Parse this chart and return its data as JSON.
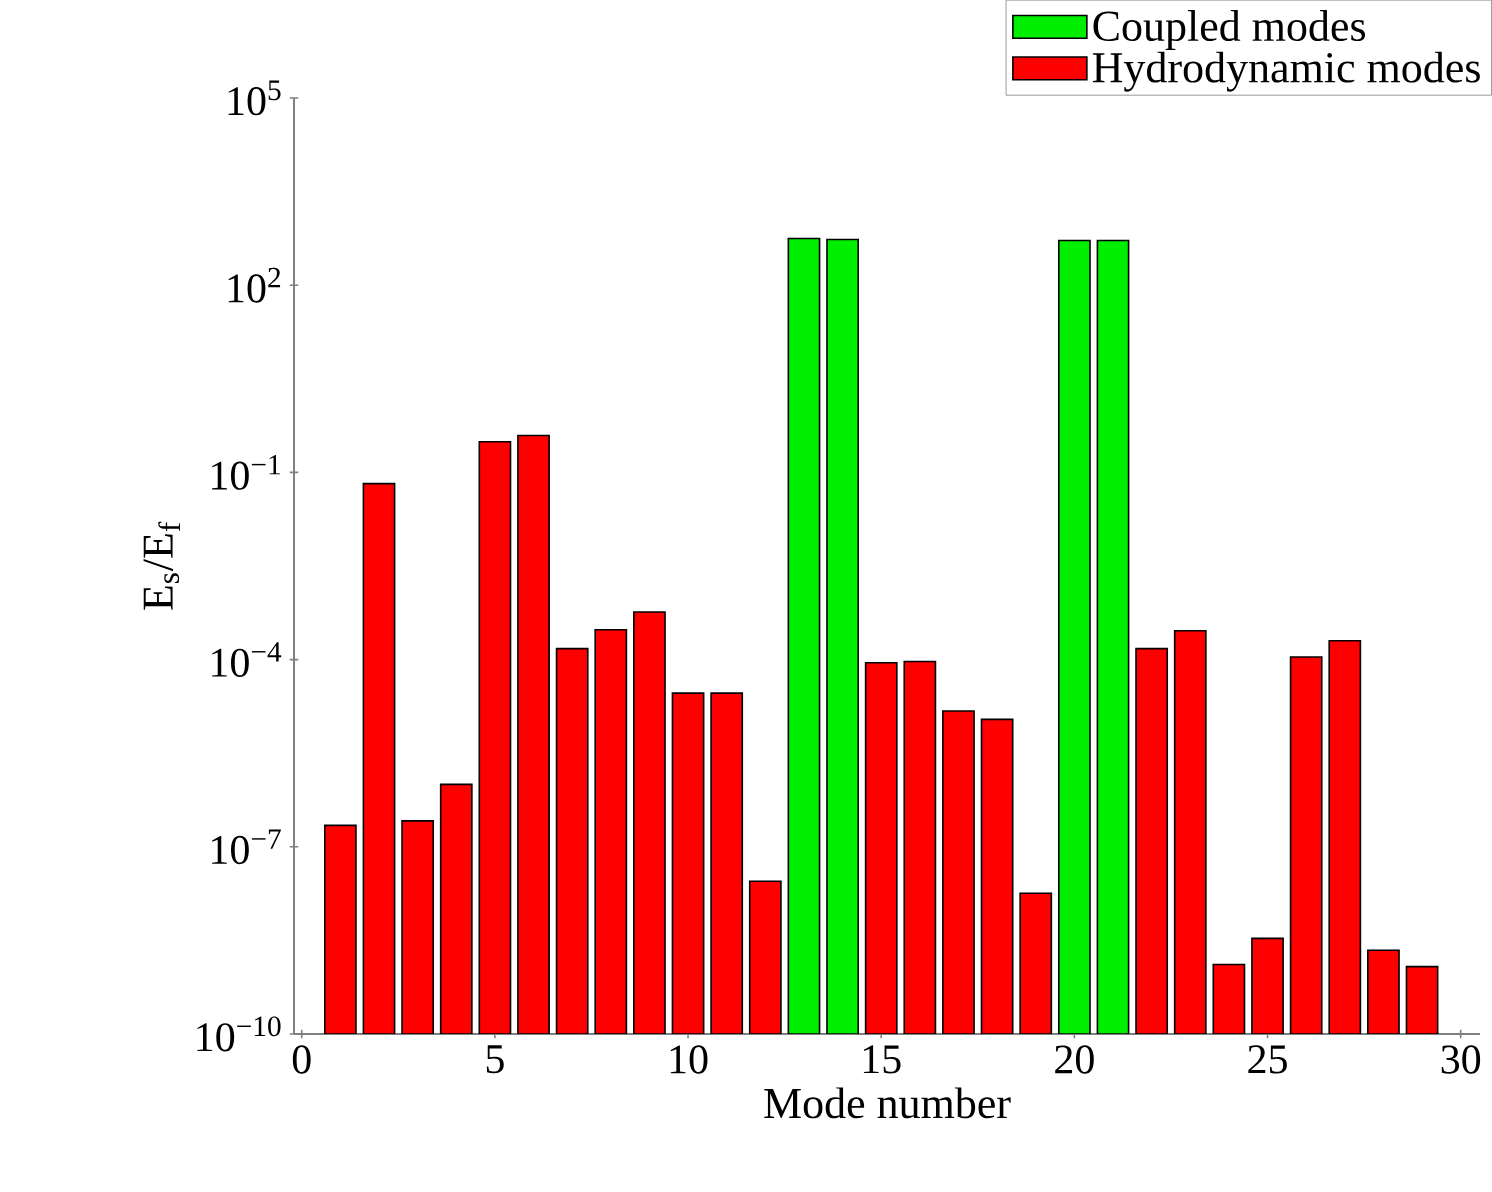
{
  "chart_data": {
    "type": "bar",
    "xlabel": "Mode number",
    "ylabel": "E$_{s}$/E$_{f}$",
    "log": "y",
    "legend": "top right",
    "x": [
      1,
      2,
      3,
      4,
      5,
      6,
      7,
      8,
      9,
      10,
      11,
      12,
      13,
      14,
      15,
      16,
      17,
      18,
      19,
      20,
      21,
      22,
      23,
      24,
      25,
      26,
      27,
      28,
      29
    ],
    "xlim": [
      -0.2,
      30.5
    ],
    "xticks": [
      0,
      5,
      10,
      15,
      20,
      25,
      30
    ],
    "ylim": [
      1e-10,
      100000
    ],
    "yticks": [
      {
        "value": 1e-10,
        "label": "10$^{−10}$"
      },
      {
        "value": 1e-07,
        "label": "10$^{−7}$"
      },
      {
        "value": 0.0001,
        "label": "10$^{−4}$"
      },
      {
        "value": 0.1,
        "label": "10$^{−1}$"
      },
      {
        "value": 100,
        "label": "10$^{2}$"
      },
      {
        "value": 100000,
        "label": "10$^{5}$"
      }
    ],
    "series": [
      {
        "name": "Coupled modes",
        "color": "#00ee00",
        "values": [
          null,
          null,
          null,
          null,
          null,
          null,
          null,
          null,
          null,
          null,
          null,
          null,
          560,
          540,
          null,
          null,
          null,
          null,
          null,
          520,
          520,
          null,
          null,
          null,
          null,
          null,
          null,
          null,
          null
        ]
      },
      {
        "name": "Hydrodynamic modes",
        "color": "#ff0000",
        "values": [
          2.2e-07,
          0.066,
          2.6e-07,
          1e-06,
          0.31,
          0.39,
          0.00015,
          0.0003,
          0.00058,
          2.9e-05,
          2.9e-05,
          2.8e-08,
          null,
          null,
          8.9e-05,
          9.3e-05,
          1.5e-05,
          1.1e-05,
          1.8e-08,
          null,
          null,
          0.00015,
          0.00029,
          1.3e-09,
          3.4e-09,
          0.00011,
          0.0002,
          2.2e-09,
          1.2e-09
        ]
      }
    ]
  }
}
